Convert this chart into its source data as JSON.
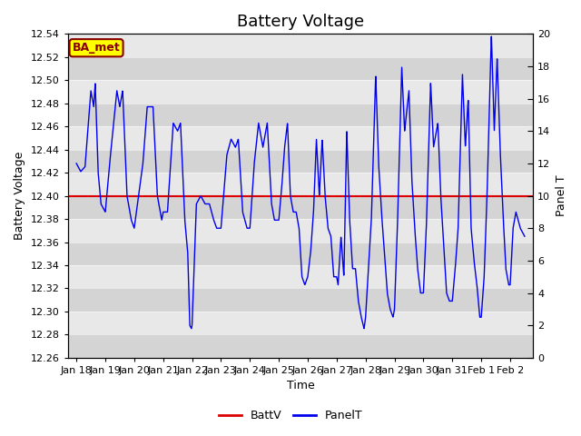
{
  "title": "Battery Voltage",
  "xlabel": "Time",
  "ylabel_left": "Battery Voltage",
  "ylabel_right": "Panel T",
  "ylim_left": [
    12.26,
    12.54
  ],
  "ylim_right": [
    0,
    20
  ],
  "yticks_left": [
    12.26,
    12.28,
    12.3,
    12.32,
    12.34,
    12.36,
    12.38,
    12.4,
    12.42,
    12.44,
    12.46,
    12.48,
    12.5,
    12.52,
    12.54
  ],
  "yticks_right": [
    0,
    2,
    4,
    6,
    8,
    10,
    12,
    14,
    16,
    18,
    20
  ],
  "xtick_labels": [
    "Jan 18",
    "Jan 19",
    "Jan 20",
    "Jan 21",
    "Jan 22",
    "Jan 23",
    "Jan 24",
    "Jan 25",
    "Jan 26",
    "Jan 27",
    "Jan 28",
    "Jan 29",
    "Jan 30",
    "Jan 31",
    "Feb 1",
    "Feb 2"
  ],
  "battv_value": 12.4,
  "battv_color": "#dd0000",
  "panelt_color": "#0000ee",
  "background_color": "#e8e8e8",
  "stripe_color": "#d4d4d4",
  "annotation_text": "BA_met",
  "annotation_bg": "#ffff00",
  "annotation_border": "#880000",
  "legend_items": [
    "BattV",
    "PanelT"
  ],
  "title_fontsize": 13,
  "axis_label_fontsize": 9,
  "tick_fontsize": 8
}
